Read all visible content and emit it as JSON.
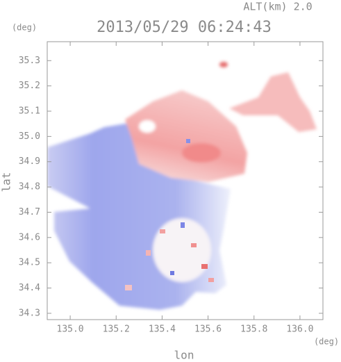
{
  "chart_data": {
    "type": "map",
    "title": "2013/05/29 06:24:43",
    "subtitle": "ALT(km) 2.0",
    "x_label": "lon",
    "y_label": "lat",
    "x_unit": "(deg)",
    "y_unit": "(deg)",
    "xlim": [
      134.9,
      136.1
    ],
    "ylim": [
      34.275,
      35.375
    ],
    "xticks": [
      {
        "value": 135,
        "label": "135.0"
      },
      135.2,
      135.4,
      135.6,
      135.8,
      {
        "value": 136,
        "label": "136.0"
      }
    ],
    "yticks": [
      34.3,
      34.4,
      34.5,
      34.6,
      34.7,
      34.8,
      34.9,
      {
        "value": 35,
        "label": "35.0"
      },
      35.1,
      35.2,
      35.3
    ],
    "grid": false
  }
}
